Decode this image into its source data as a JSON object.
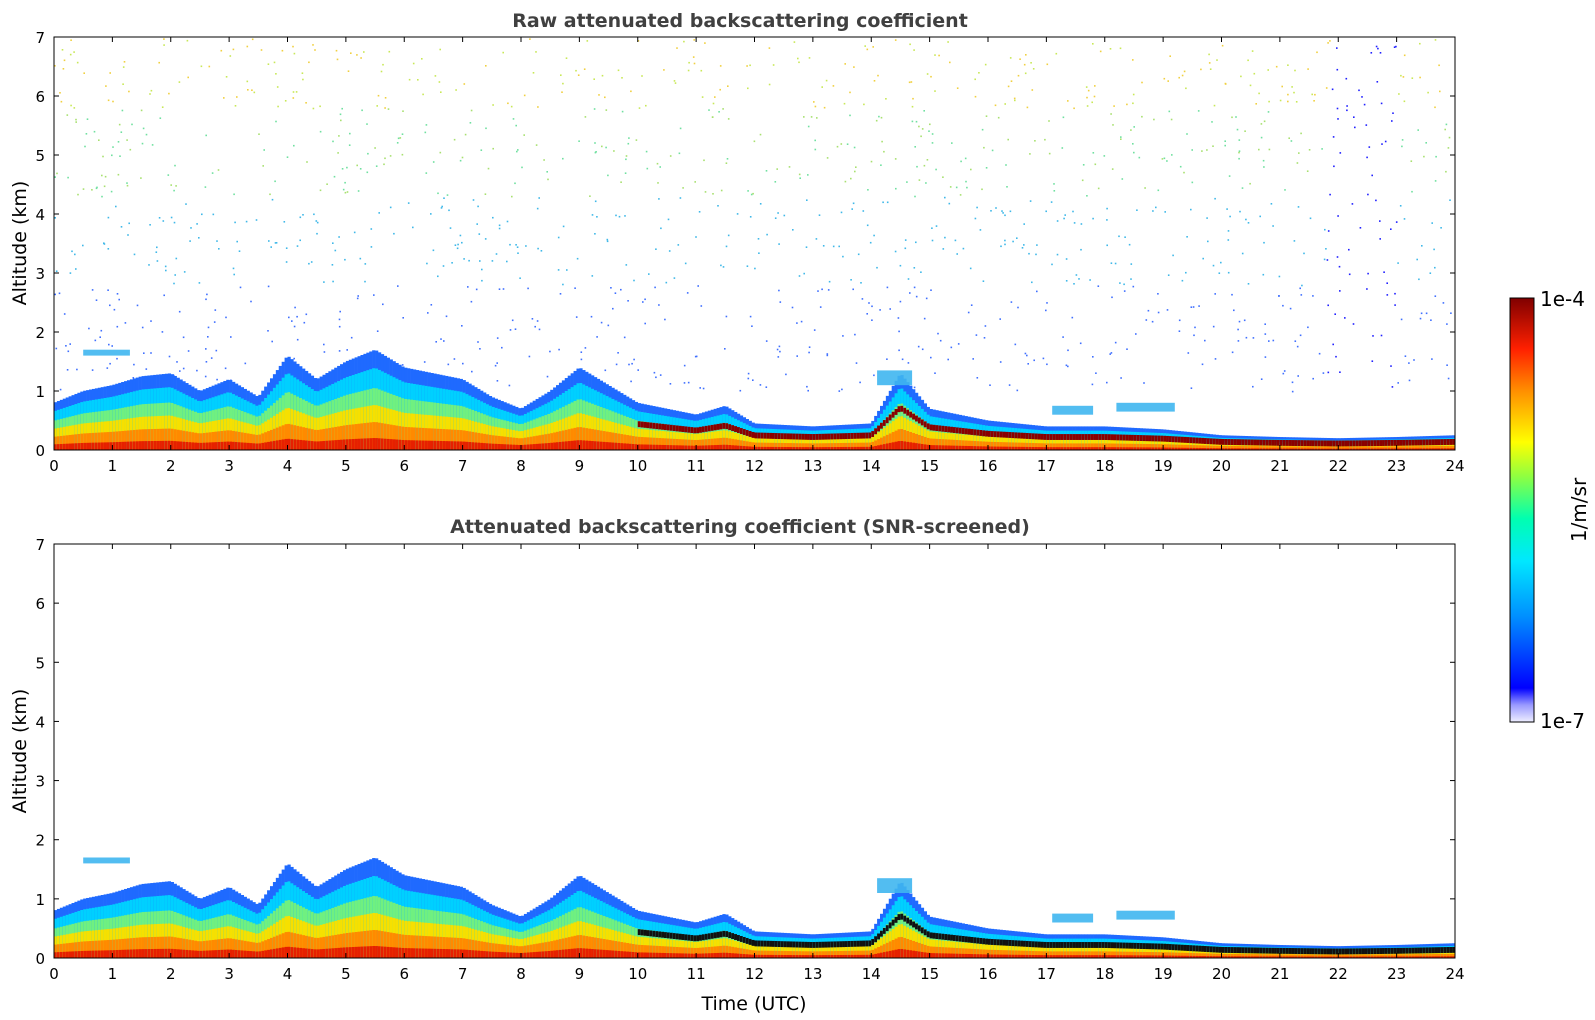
{
  "chart_data": [
    {
      "type": "heatmap",
      "title": "Raw attenuated backscattering coefficient",
      "xlabel": "",
      "ylabel": "Altitude (km)",
      "xlim": [
        0,
        24
      ],
      "ylim": [
        0,
        7
      ],
      "x_ticks": [
        "0",
        "1",
        "2",
        "3",
        "4",
        "5",
        "6",
        "7",
        "8",
        "9",
        "10",
        "11",
        "12",
        "13",
        "14",
        "15",
        "16",
        "17",
        "18",
        "19",
        "20",
        "21",
        "22",
        "23",
        "24"
      ],
      "y_ticks": [
        "0",
        "1",
        "2",
        "3",
        "4",
        "5",
        "6",
        "7"
      ],
      "noisy_background": true,
      "layer_top_profile": [
        [
          0,
          0.8
        ],
        [
          0.5,
          1.0
        ],
        [
          1,
          1.1
        ],
        [
          1.5,
          1.25
        ],
        [
          2,
          1.3
        ],
        [
          2.5,
          1.0
        ],
        [
          3,
          1.2
        ],
        [
          3.5,
          0.9
        ],
        [
          4,
          1.6
        ],
        [
          4.5,
          1.2
        ],
        [
          5,
          1.5
        ],
        [
          5.5,
          1.7
        ],
        [
          6,
          1.4
        ],
        [
          6.5,
          1.3
        ],
        [
          7,
          1.2
        ],
        [
          7.5,
          0.9
        ],
        [
          8,
          0.7
        ],
        [
          8.5,
          1.0
        ],
        [
          9,
          1.4
        ],
        [
          9.5,
          1.1
        ],
        [
          10,
          0.8
        ],
        [
          10.5,
          0.7
        ],
        [
          11,
          0.6
        ],
        [
          11.5,
          0.75
        ],
        [
          12,
          0.45
        ],
        [
          13,
          0.4
        ],
        [
          14,
          0.45
        ],
        [
          14.5,
          1.3
        ],
        [
          15,
          0.7
        ],
        [
          15.5,
          0.6
        ],
        [
          16,
          0.5
        ],
        [
          17,
          0.4
        ],
        [
          18,
          0.4
        ],
        [
          19,
          0.35
        ],
        [
          20,
          0.25
        ],
        [
          21,
          0.22
        ],
        [
          22,
          0.2
        ],
        [
          23,
          0.22
        ],
        [
          24,
          0.25
        ]
      ],
      "elevated_layers": [
        {
          "x": [
            0.5,
            1.3
          ],
          "y": [
            1.6,
            1.7
          ]
        },
        {
          "x": [
            14.1,
            14.7
          ],
          "y": [
            1.1,
            1.35
          ]
        },
        {
          "x": [
            17.1,
            17.8
          ],
          "y": [
            0.6,
            0.75
          ]
        },
        {
          "x": [
            18.2,
            19.2
          ],
          "y": [
            0.65,
            0.8
          ]
        }
      ]
    },
    {
      "type": "heatmap",
      "title": "Attenuated backscattering coefficient (SNR-screened)",
      "xlabel": "Time (UTC)",
      "ylabel": "Altitude (km)",
      "xlim": [
        0,
        24
      ],
      "ylim": [
        0,
        7
      ],
      "x_ticks": [
        "0",
        "1",
        "2",
        "3",
        "4",
        "5",
        "6",
        "7",
        "8",
        "9",
        "10",
        "11",
        "12",
        "13",
        "14",
        "15",
        "16",
        "17",
        "18",
        "19",
        "20",
        "21",
        "22",
        "23",
        "24"
      ],
      "y_ticks": [
        "0",
        "1",
        "2",
        "3",
        "4",
        "5",
        "6",
        "7"
      ],
      "noisy_background": false
    }
  ],
  "colorbar": {
    "max_label": "1e-4",
    "min_label": "1e-7",
    "unit_label": "1/m/sr",
    "colormap": "jet",
    "colors": [
      "#eeeeff",
      "#0000ff",
      "#00b4ff",
      "#00ffb0",
      "#ffff00",
      "#ff8000",
      "#ff0000",
      "#800000"
    ]
  }
}
